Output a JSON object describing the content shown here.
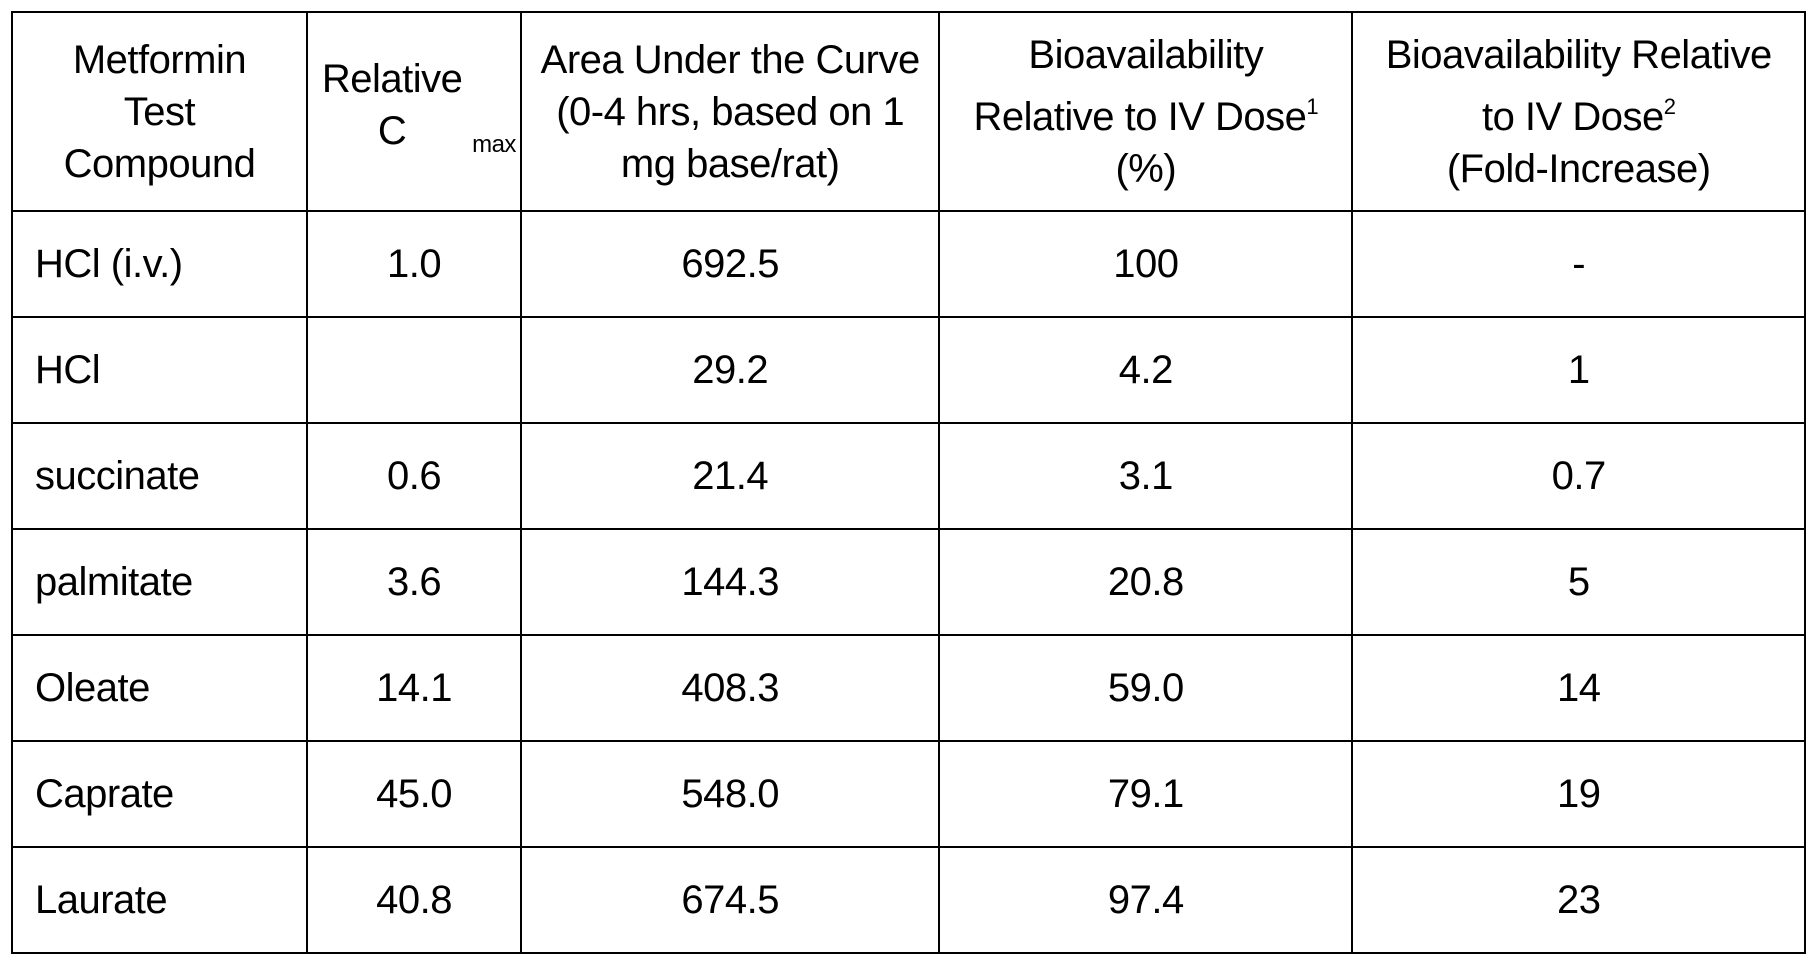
{
  "table": {
    "headers": [
      {
        "text": "Metformin Test Compound"
      },
      {
        "main": "Relative C",
        "sub": "max"
      },
      {
        "text": "Area Under the Curve (0-4 hrs, based on 1 mg base/rat)"
      },
      {
        "line1": "Bioavailability",
        "line2": "Relative to IV Dose",
        "sup": "1",
        "line3": "(%)"
      },
      {
        "line1": "Bioavailability Relative",
        "line2": "to IV Dose",
        "sup": "2",
        "line3": "(Fold-Increase)"
      }
    ],
    "rows": [
      [
        "HCl (i.v.)",
        "1.0",
        "692.5",
        "100",
        "-"
      ],
      [
        "HCl",
        "",
        "29.2",
        "4.2",
        "1"
      ],
      [
        "succinate",
        "0.6",
        "21.4",
        "3.1",
        "0.7"
      ],
      [
        "palmitate",
        "3.6",
        "144.3",
        "20.8",
        "5"
      ],
      [
        "Oleate",
        "14.1",
        "408.3",
        "59.0",
        "14"
      ],
      [
        "Caprate",
        "45.0",
        "548.0",
        "79.1",
        "19"
      ],
      [
        "Laurate",
        "40.8",
        "674.5",
        "97.4",
        "23"
      ]
    ]
  }
}
